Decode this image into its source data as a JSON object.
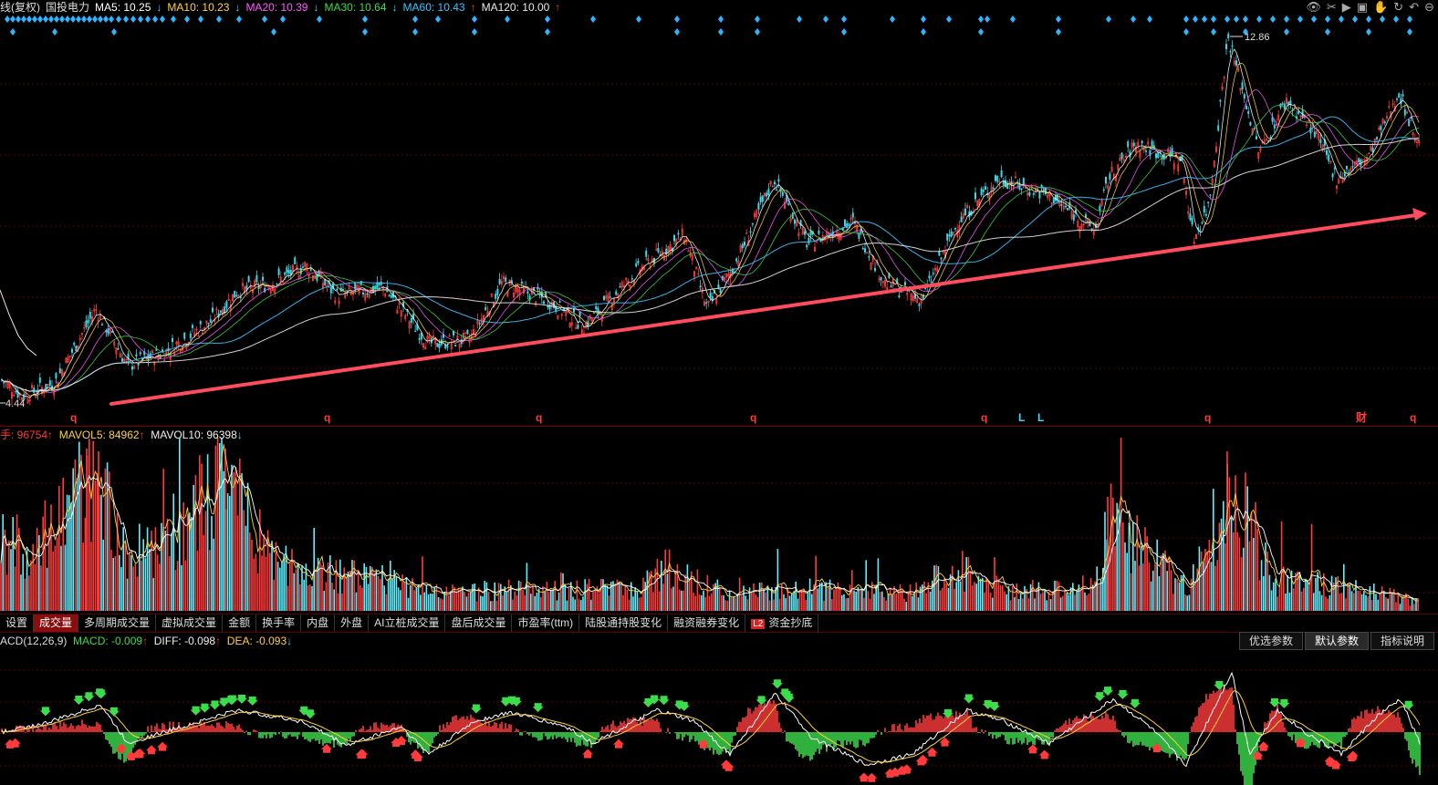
{
  "price_panel": {
    "title": "线(复权)",
    "stock_name": "国投电力",
    "ma": [
      {
        "label": "MA5: 10.25",
        "arrow": "↓",
        "color": "#ffffff"
      },
      {
        "label": "MA10: 10.23",
        "arrow": "↓",
        "color": "#ffd23f"
      },
      {
        "label": "MA20: 10.39",
        "arrow": "↓",
        "color": "#ff5bff"
      },
      {
        "label": "MA30: 10.64",
        "arrow": "↓",
        "color": "#3ddc4b"
      },
      {
        "label": "MA60: 10.43",
        "arrow": "↑",
        "color": "#3cc3ff"
      },
      {
        "label": "MA120: 10.00",
        "arrow": "↑",
        "color": "#e8e8e8"
      }
    ],
    "high_label": "12.86",
    "low_label": "4.44",
    "event_markers": [
      "q",
      "q",
      "q",
      "q",
      "q",
      "L",
      "L",
      "q",
      "财",
      "q"
    ]
  },
  "volume_panel": {
    "vol_label": "手: 96754",
    "vol_arrow": "↑",
    "mavol5": "MAVOL5: 84962",
    "mavol5_arrow": "↑",
    "mavol10": "MAVOL10: 96398",
    "mavol10_arrow": "↓"
  },
  "tabs": [
    {
      "label": "设置",
      "active": false
    },
    {
      "label": "成交量",
      "active": true
    },
    {
      "label": "多周期成交量",
      "active": false
    },
    {
      "label": "虚拟成交量",
      "active": false
    },
    {
      "label": "金额",
      "active": false
    },
    {
      "label": "换手率",
      "active": false
    },
    {
      "label": "内盘",
      "active": false
    },
    {
      "label": "外盘",
      "active": false
    },
    {
      "label": "AI立桩成交量",
      "active": false
    },
    {
      "label": "盘后成交量",
      "active": false
    },
    {
      "label": "市盈率(ttm)",
      "active": false
    },
    {
      "label": "陆股通持股变化",
      "active": false
    },
    {
      "label": "融资融券变化",
      "active": false
    },
    {
      "label": "资金抄底",
      "active": false,
      "badge": "L2"
    }
  ],
  "macd_panel": {
    "name": "ACD(12,26,9)",
    "macd": "MACD: -0.009",
    "macd_arrow": "↑",
    "diff": "DIFF: -0.098",
    "diff_arrow": "↑",
    "dea": "DEA: -0.093",
    "dea_arrow": "↓",
    "buttons": [
      {
        "label": "优选参数",
        "active": false
      },
      {
        "label": "默认参数",
        "active": true
      },
      {
        "label": "指标说明",
        "active": false
      }
    ]
  },
  "toolbar_icons": [
    "eye-icon",
    "scissors-icon",
    "play-icon",
    "clipboard-icon",
    "hand-icon",
    "rotate-icon",
    "undo-icon",
    "minus-icon"
  ],
  "chart_data": {
    "type": "line",
    "price_range": [
      4.44,
      12.86
    ],
    "price_anchors": [
      [
        0,
        5.0
      ],
      [
        25,
        4.6
      ],
      [
        60,
        4.9
      ],
      [
        105,
        6.6
      ],
      [
        140,
        5.3
      ],
      [
        180,
        5.6
      ],
      [
        230,
        6.3
      ],
      [
        260,
        7.0
      ],
      [
        300,
        7.2
      ],
      [
        335,
        7.6
      ],
      [
        370,
        6.9
      ],
      [
        420,
        7.1
      ],
      [
        470,
        5.8
      ],
      [
        515,
        5.9
      ],
      [
        550,
        7.2
      ],
      [
        600,
        6.8
      ],
      [
        640,
        6.2
      ],
      [
        700,
        7.5
      ],
      [
        750,
        8.3
      ],
      [
        775,
        6.6
      ],
      [
        805,
        7.6
      ],
      [
        848,
        9.6
      ],
      [
        885,
        8.1
      ],
      [
        935,
        8.6
      ],
      [
        970,
        7.2
      ],
      [
        1010,
        6.8
      ],
      [
        1050,
        8.6
      ],
      [
        1095,
        9.6
      ],
      [
        1150,
        9.2
      ],
      [
        1200,
        8.4
      ],
      [
        1215,
        9.6
      ],
      [
        1245,
        10.4
      ],
      [
        1295,
        10.0
      ],
      [
        1308,
        8.2
      ],
      [
        1325,
        9.0
      ],
      [
        1346,
        12.86
      ],
      [
        1380,
        10.2
      ],
      [
        1410,
        11.4
      ],
      [
        1440,
        10.7
      ],
      [
        1465,
        9.6
      ],
      [
        1500,
        10.1
      ],
      [
        1533,
        11.6
      ],
      [
        1556,
        10.3
      ]
    ],
    "volume_anchors": [
      [
        0,
        3.5
      ],
      [
        40,
        2.8
      ],
      [
        95,
        6.0
      ],
      [
        108,
        5.5
      ],
      [
        140,
        2.4
      ],
      [
        180,
        3.2
      ],
      [
        247,
        5.8
      ],
      [
        300,
        2.2
      ],
      [
        340,
        1.8
      ],
      [
        420,
        1.4
      ],
      [
        470,
        0.8
      ],
      [
        520,
        0.9
      ],
      [
        600,
        1.0
      ],
      [
        700,
        1.0
      ],
      [
        725,
        2.0
      ],
      [
        800,
        0.8
      ],
      [
        900,
        1.0
      ],
      [
        1000,
        0.8
      ],
      [
        1050,
        2.0
      ],
      [
        1100,
        0.9
      ],
      [
        1200,
        1.0
      ],
      [
        1214,
        4.2
      ],
      [
        1300,
        1.0
      ],
      [
        1345,
        5.8
      ],
      [
        1400,
        1.4
      ],
      [
        1500,
        1.0
      ],
      [
        1556,
        0.4
      ]
    ],
    "macd_anchors": [
      [
        0,
        0.0
      ],
      [
        50,
        0.08
      ],
      [
        110,
        0.25
      ],
      [
        140,
        -0.1
      ],
      [
        200,
        0.05
      ],
      [
        260,
        0.2
      ],
      [
        330,
        0.1
      ],
      [
        380,
        -0.12
      ],
      [
        440,
        0.05
      ],
      [
        470,
        -0.2
      ],
      [
        520,
        0.1
      ],
      [
        560,
        0.18
      ],
      [
        620,
        0.05
      ],
      [
        650,
        -0.1
      ],
      [
        720,
        0.2
      ],
      [
        760,
        0.1
      ],
      [
        800,
        -0.2
      ],
      [
        850,
        0.35
      ],
      [
        890,
        -0.05
      ],
      [
        950,
        -0.3
      ],
      [
        1000,
        -0.2
      ],
      [
        1060,
        0.2
      ],
      [
        1100,
        0.1
      ],
      [
        1150,
        -0.1
      ],
      [
        1220,
        0.3
      ],
      [
        1260,
        0.05
      ],
      [
        1300,
        -0.3
      ],
      [
        1350,
        0.55
      ],
      [
        1370,
        -0.2
      ],
      [
        1400,
        0.2
      ],
      [
        1430,
        0.0
      ],
      [
        1470,
        -0.2
      ],
      [
        1510,
        0.15
      ],
      [
        1535,
        0.3
      ],
      [
        1556,
        -0.1
      ]
    ],
    "trendline": [
      [
        122,
        443
      ],
      [
        1564,
        234
      ]
    ]
  }
}
